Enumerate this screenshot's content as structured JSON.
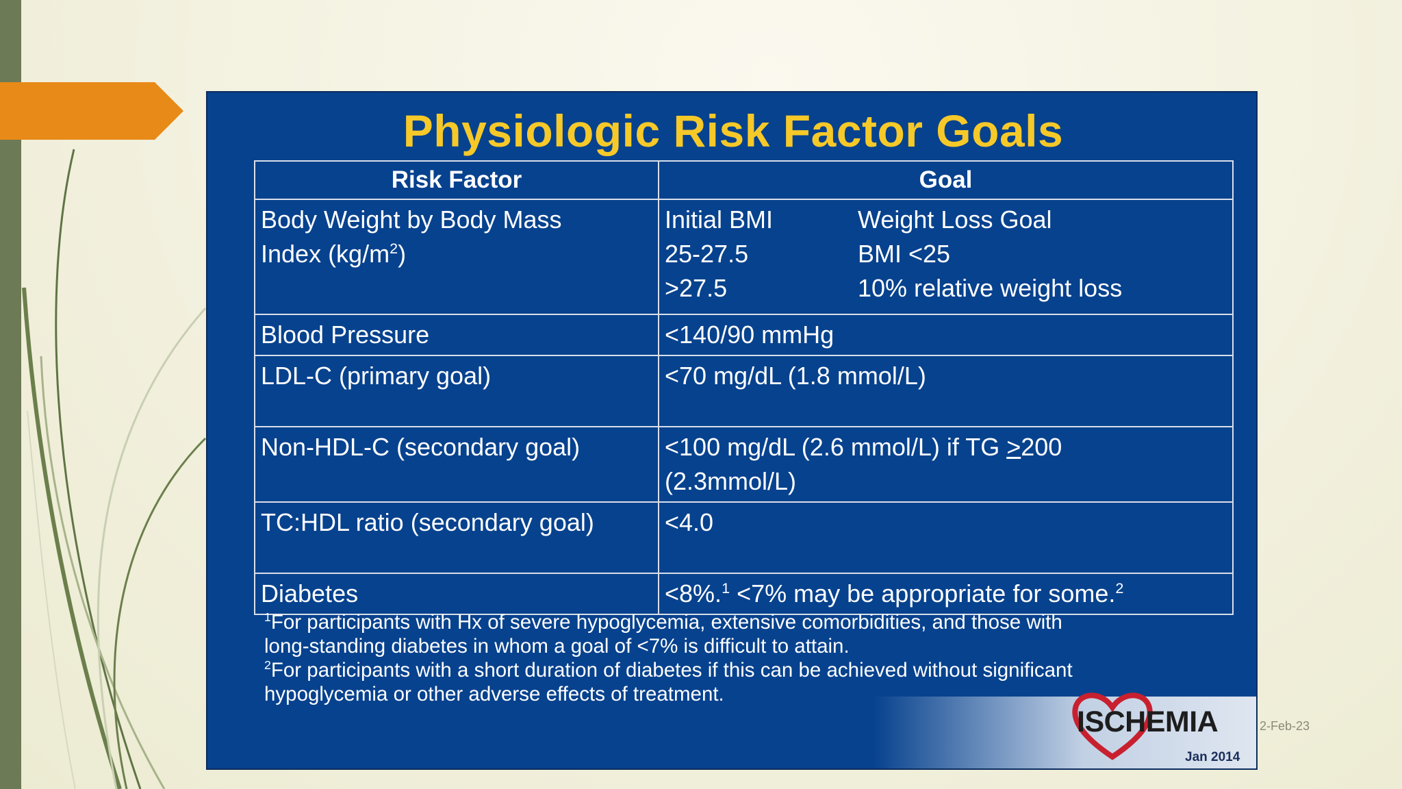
{
  "slide": {
    "date": "2-Feb-23"
  },
  "panel": {
    "title": "Physiologic Risk Factor Goals",
    "headers": {
      "risk_factor": "Risk Factor",
      "goal": "Goal"
    },
    "bmi_row": {
      "risk_label": "Body Weight by Body Mass",
      "risk_label_2": "Index (kg/m",
      "risk_sup": "2",
      "risk_close": ")",
      "col_a_header": "Initial BMI",
      "col_b_header": "Weight Loss Goal",
      "a1": "25-27.5",
      "b1": "BMI <25",
      "a2": ">27.5",
      "b2": "10% relative weight loss"
    },
    "bp_row": {
      "risk": "Blood Pressure",
      "goal": "<140/90 mmHg"
    },
    "ldl_row": {
      "risk": "LDL-C (primary goal)",
      "goal": "<70 mg/dL (1.8 mmol/L)"
    },
    "nonhdl_row": {
      "risk": "Non-HDL-C (secondary goal)",
      "goal_pre": "<100 mg/dL (2.6 mmol/L) if TG ",
      "goal_ul": ">",
      "goal_post": "200",
      "goal_line2": "(2.3mmol/L)"
    },
    "tc_row": {
      "risk": "TC:HDL ratio (secondary goal)",
      "goal": "<4.0"
    },
    "dm_row": {
      "risk": "Diabetes",
      "goal_part1": "<8%.",
      "sup1": "1",
      "goal_part2": " <7% may be appropriate for some.",
      "sup2": "2"
    },
    "footnotes": {
      "f1_mark": "1",
      "f1_line1": "For participants with Hx of severe hypoglycemia, extensive comorbidities, and those with",
      "f1_line2": "long-standing diabetes in whom a goal of <7% is difficult to attain.",
      "f2_mark": "2",
      "f2_line1": "For participants with a short duration of diabetes if this can be achieved without significant",
      "f2_line2": "hypoglycemia or other adverse effects of treatment."
    },
    "logo": {
      "name": "ISCHEMIA",
      "date": "Jan 2014",
      "heart_color": "#c8202f"
    }
  },
  "colors": {
    "panel_bg": "#07428e",
    "title": "#f6c929",
    "accent_arrow": "#e88a17",
    "left_bar": "#6c7a55"
  }
}
